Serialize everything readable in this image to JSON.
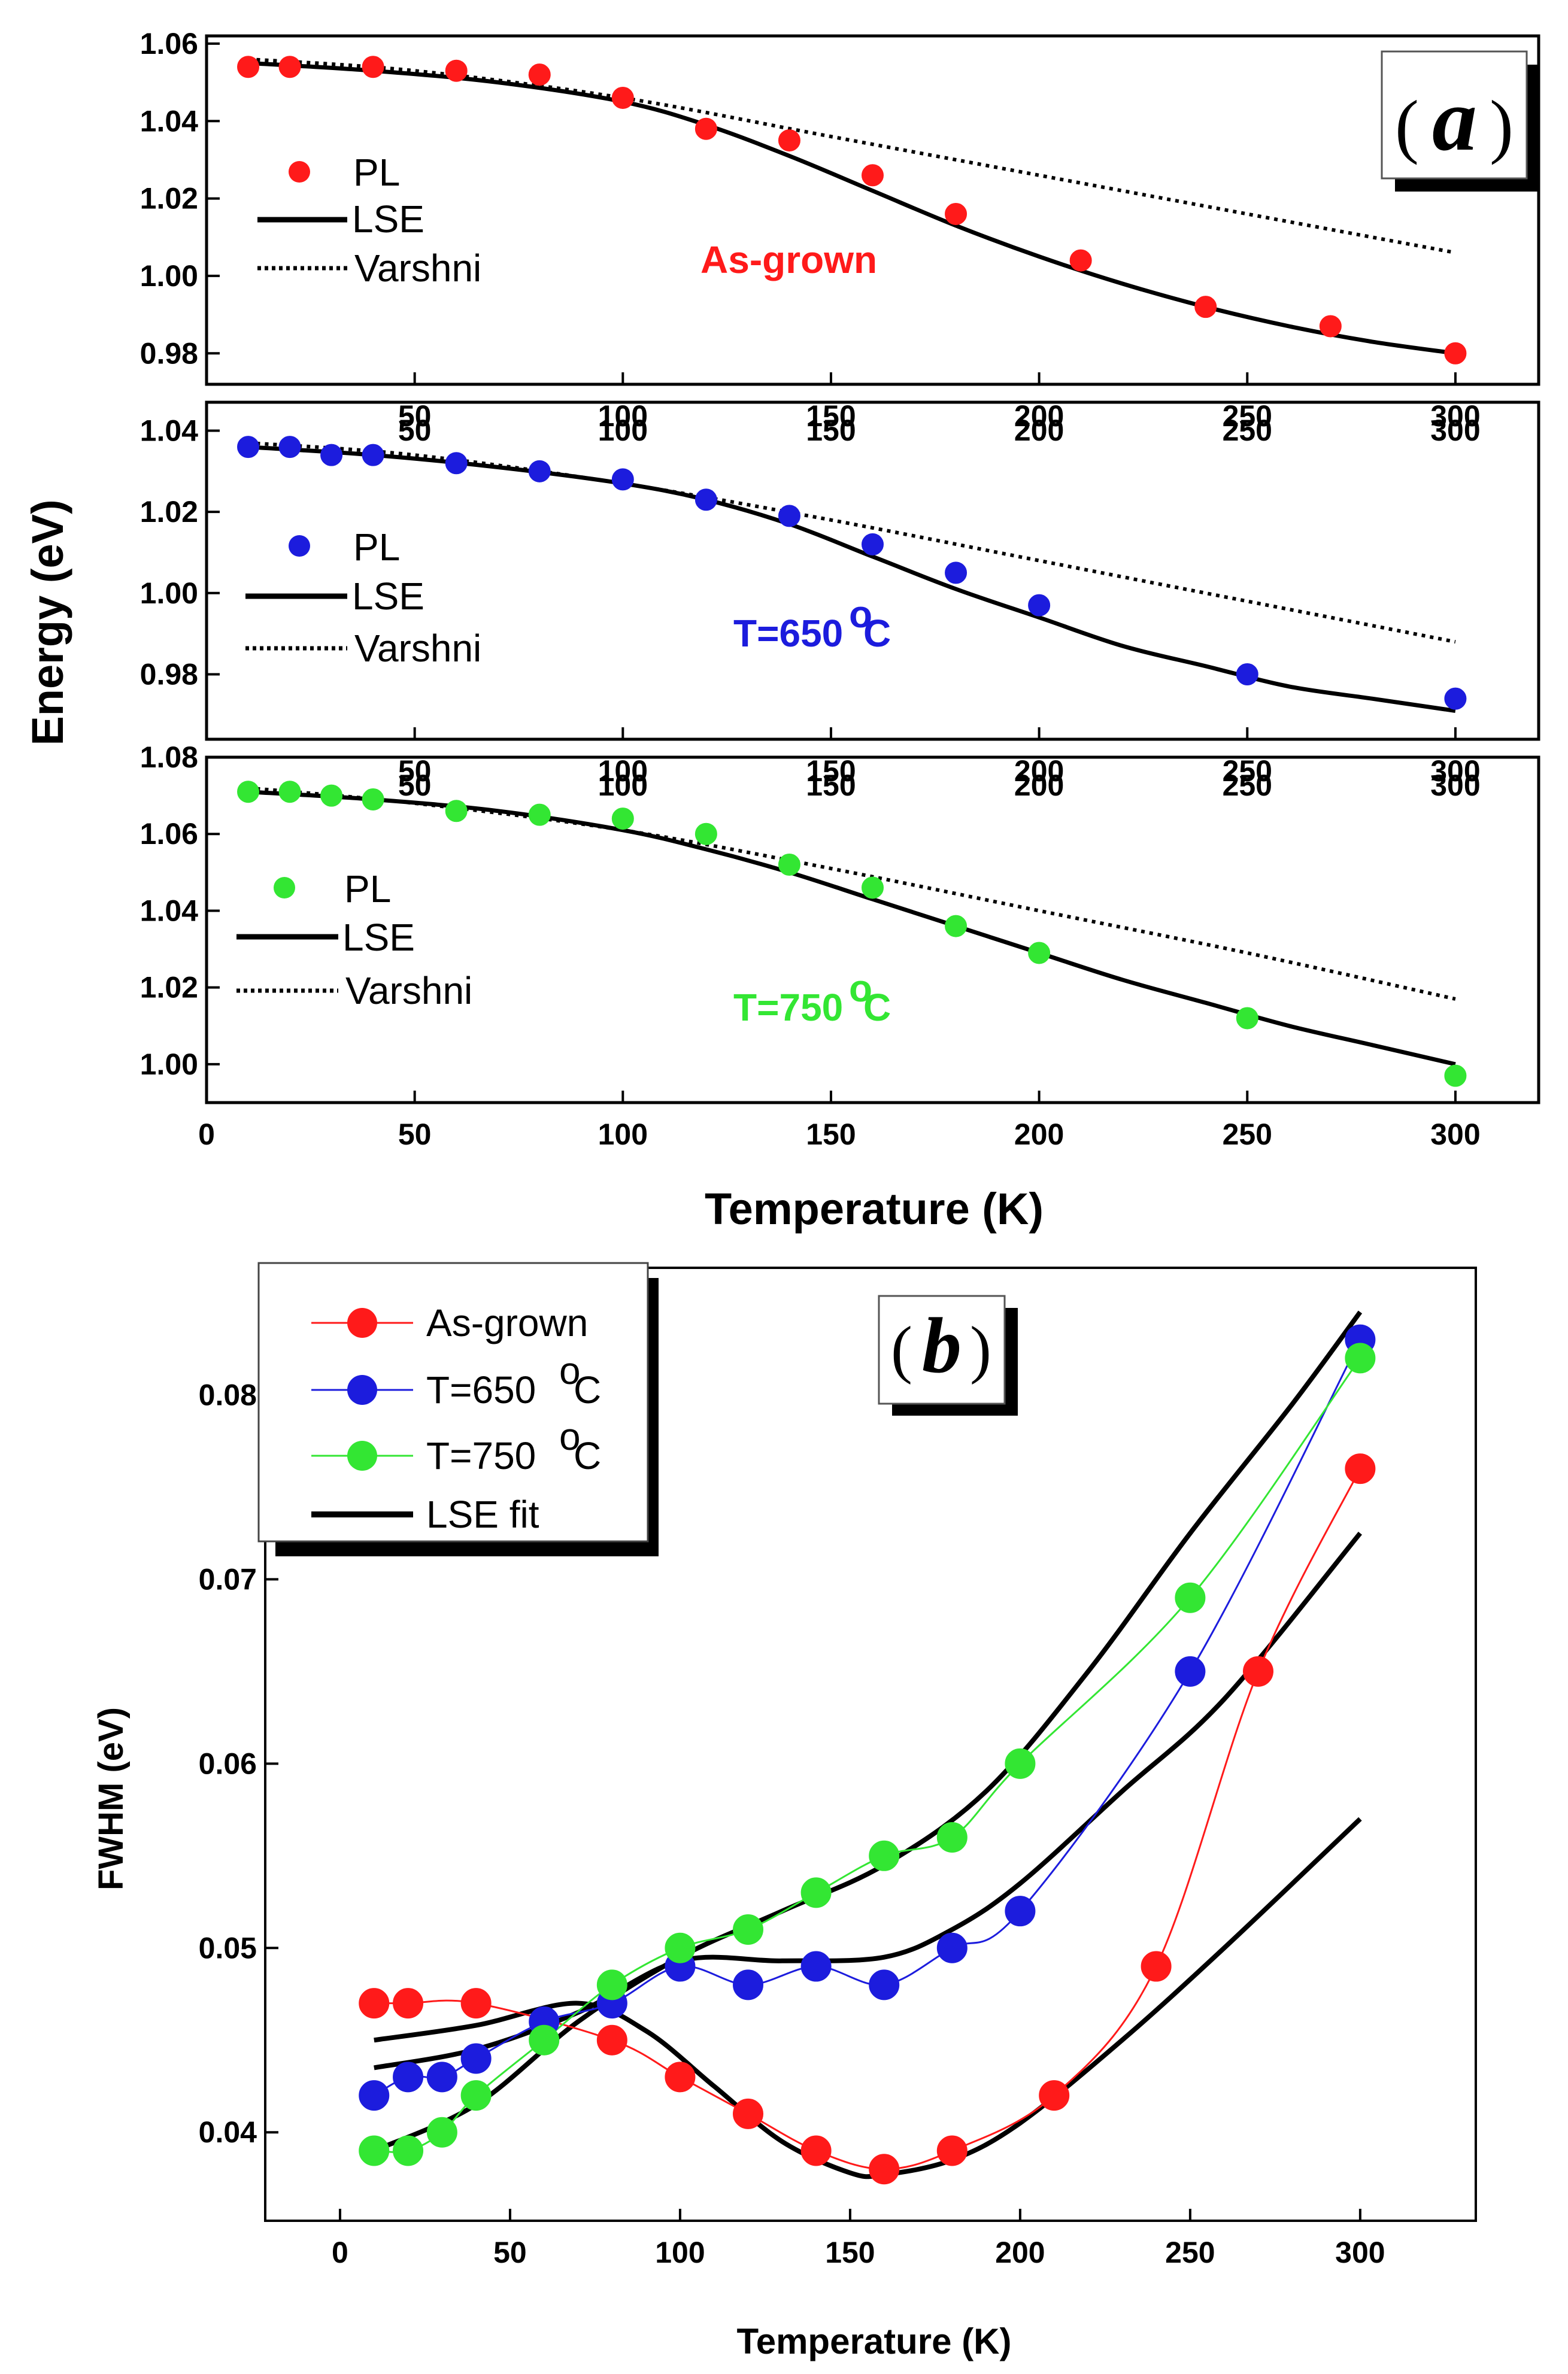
{
  "colors": {
    "red": "#ff1a1a",
    "blue": "#1c1cdd",
    "green": "#33e633",
    "black": "#000000"
  },
  "figure_a": {
    "tag_letter": "a",
    "y_axis_title": "Energy (eV)",
    "x_axis_title": "Temperature (K)"
  },
  "figure_b": {
    "tag_letter": "b"
  },
  "chart_data": [
    {
      "type": "scatter",
      "panel": "a-top",
      "annotation": "As-grown",
      "legend": [
        "PL",
        "LSE",
        "Varshni"
      ],
      "xlim": [
        0,
        320
      ],
      "ylim": [
        0.972,
        1.062
      ],
      "yticks": [
        1.06,
        1.04,
        1.02,
        1.0,
        0.98
      ],
      "ytick_labels": [
        "1.06",
        "1.04",
        "1.02",
        "1.00",
        "0.98"
      ],
      "xticks": [
        50,
        100,
        150,
        200,
        250,
        300
      ],
      "xtick_labels": [
        "50",
        "100",
        "150",
        "200",
        "250",
        "300"
      ],
      "series": [
        {
          "name": "PL",
          "color": "#ff1a1a",
          "x": [
            10,
            20,
            40,
            60,
            80,
            100,
            120,
            140,
            160,
            180,
            210,
            240,
            270,
            300
          ],
          "y": [
            1.054,
            1.054,
            1.054,
            1.053,
            1.052,
            1.046,
            1.038,
            1.035,
            1.026,
            1.016,
            1.004,
            0.992,
            0.987,
            0.98
          ]
        },
        {
          "name": "LSE",
          "style": "solid",
          "x": [
            10,
            40,
            70,
            100,
            120,
            140,
            160,
            180,
            200,
            220,
            240,
            260,
            280,
            300
          ],
          "y": [
            1.055,
            1.053,
            1.05,
            1.045,
            1.039,
            1.031,
            1.022,
            1.013,
            1.005,
            0.998,
            0.992,
            0.987,
            0.983,
            0.98
          ]
        },
        {
          "name": "Varshni",
          "style": "dotted",
          "x": [
            10,
            50,
            100,
            150,
            200,
            250,
            300
          ],
          "y": [
            1.056,
            1.053,
            1.046,
            1.036,
            1.026,
            1.016,
            1.006
          ]
        }
      ]
    },
    {
      "type": "scatter",
      "panel": "a-middle",
      "annotation": "T=650",
      "annotation_unit": "C",
      "annotation_degree": "o",
      "legend": [
        "PL",
        "LSE",
        "Varshni"
      ],
      "xlim": [
        0,
        320
      ],
      "ylim": [
        0.964,
        1.047
      ],
      "yticks": [
        1.04,
        1.02,
        1.0,
        0.98
      ],
      "ytick_labels": [
        "1.04",
        "1.02",
        "1.00",
        "0.98"
      ],
      "xticks": [
        50,
        100,
        150,
        200,
        250,
        300
      ],
      "xtick_labels": [
        "50",
        "100",
        "150",
        "200",
        "250",
        "300"
      ],
      "series": [
        {
          "name": "PL",
          "color": "#1c1cdd",
          "x": [
            10,
            20,
            30,
            40,
            60,
            80,
            100,
            120,
            140,
            160,
            180,
            200,
            250,
            300
          ],
          "y": [
            1.036,
            1.036,
            1.034,
            1.034,
            1.032,
            1.03,
            1.028,
            1.023,
            1.019,
            1.012,
            1.005,
            0.997,
            0.98,
            0.974
          ]
        },
        {
          "name": "LSE",
          "style": "solid",
          "x": [
            10,
            40,
            70,
            100,
            120,
            140,
            160,
            180,
            200,
            220,
            240,
            260,
            280,
            300
          ],
          "y": [
            1.036,
            1.034,
            1.031,
            1.027,
            1.023,
            1.017,
            1.009,
            1.001,
            0.994,
            0.987,
            0.982,
            0.977,
            0.974,
            0.971
          ]
        },
        {
          "name": "Varshni",
          "style": "dotted",
          "x": [
            10,
            50,
            100,
            150,
            200,
            250,
            300
          ],
          "y": [
            1.037,
            1.034,
            1.027,
            1.018,
            1.008,
            0.998,
            0.988
          ]
        }
      ]
    },
    {
      "type": "scatter",
      "panel": "a-bottom",
      "annotation": "T=750",
      "annotation_unit": "C",
      "annotation_degree": "o",
      "legend": [
        "PL",
        "LSE",
        "Varshni"
      ],
      "xlabel": "Temperature (K)",
      "xlim": [
        0,
        320
      ],
      "ylim": [
        0.99,
        1.08
      ],
      "yticks": [
        1.08,
        1.06,
        1.04,
        1.02,
        1.0
      ],
      "ytick_labels": [
        "1.08",
        "1.06",
        "1.04",
        "1.02",
        "1.00"
      ],
      "top_xticks": [
        50,
        100,
        150,
        200,
        250,
        300
      ],
      "top_xtick_labels": [
        "50",
        "100",
        "150",
        "200",
        "250",
        "300"
      ],
      "xticks": [
        0,
        50,
        100,
        150,
        200,
        250,
        300
      ],
      "xtick_labels": [
        "0",
        "50",
        "100",
        "150",
        "200",
        "250",
        "300"
      ],
      "series": [
        {
          "name": "PL",
          "color": "#33e633",
          "x": [
            10,
            20,
            30,
            40,
            60,
            80,
            100,
            120,
            140,
            160,
            180,
            200,
            250,
            300
          ],
          "y": [
            1.071,
            1.071,
            1.07,
            1.069,
            1.066,
            1.065,
            1.064,
            1.06,
            1.052,
            1.046,
            1.036,
            1.029,
            1.012,
            0.997
          ]
        },
        {
          "name": "LSE",
          "style": "solid",
          "x": [
            10,
            40,
            70,
            100,
            120,
            140,
            160,
            180,
            200,
            220,
            240,
            260,
            280,
            300
          ],
          "y": [
            1.071,
            1.069,
            1.066,
            1.061,
            1.056,
            1.05,
            1.043,
            1.036,
            1.029,
            1.022,
            1.016,
            1.01,
            1.005,
            1.0
          ]
        },
        {
          "name": "Varshni",
          "style": "dotted",
          "x": [
            10,
            50,
            100,
            150,
            200,
            250,
            300
          ],
          "y": [
            1.072,
            1.068,
            1.061,
            1.051,
            1.04,
            1.029,
            1.017
          ]
        }
      ]
    },
    {
      "type": "line",
      "panel": "b",
      "xlabel": "Temperature (K)",
      "ylabel": "FWHM (eV)",
      "xlim": [
        -22,
        334
      ],
      "ylim": [
        0.0352,
        0.0869
      ],
      "xticks": [
        0,
        50,
        100,
        150,
        200,
        250,
        300
      ],
      "xtick_labels": [
        "0",
        "50",
        "100",
        "150",
        "200",
        "250",
        "300"
      ],
      "yticks": [
        0.04,
        0.05,
        0.06,
        0.07,
        0.08
      ],
      "ytick_labels": [
        "0.04",
        "0.05",
        "0.06",
        "0.07",
        "0.08"
      ],
      "legend": [
        "As-grown",
        "T=650",
        "T=750",
        "LSE fit"
      ],
      "legend_unit": "C",
      "legend_degree": "o",
      "series": [
        {
          "name": "As-grown",
          "color": "#ff1a1a",
          "x": [
            10,
            20,
            40,
            80,
            100,
            120,
            140,
            160,
            180,
            210,
            240,
            270,
            300
          ],
          "y": [
            0.047,
            0.047,
            0.047,
            0.045,
            0.043,
            0.041,
            0.039,
            0.038,
            0.039,
            0.042,
            0.049,
            0.065,
            0.076
          ]
        },
        {
          "name": "T=650",
          "color": "#1c1cdd",
          "x": [
            10,
            20,
            30,
            40,
            60,
            80,
            100,
            120,
            140,
            160,
            180,
            200,
            250,
            300
          ],
          "y": [
            0.042,
            0.043,
            0.043,
            0.044,
            0.046,
            0.047,
            0.049,
            0.048,
            0.049,
            0.048,
            0.05,
            0.052,
            0.065,
            0.083
          ]
        },
        {
          "name": "T=750",
          "color": "#33e633",
          "x": [
            10,
            20,
            30,
            40,
            60,
            80,
            100,
            120,
            140,
            160,
            180,
            200,
            250,
            300
          ],
          "y": [
            0.039,
            0.039,
            0.04,
            0.042,
            0.045,
            0.048,
            0.05,
            0.051,
            0.053,
            0.055,
            0.056,
            0.06,
            0.069,
            0.082
          ]
        },
        {
          "name": "LSE fit (As-grown)",
          "style": "solid",
          "x": [
            10,
            40,
            70,
            90,
            110,
            130,
            150,
            160,
            180,
            200,
            230,
            260,
            300
          ],
          "y": [
            0.045,
            0.0458,
            0.047,
            0.0455,
            0.0425,
            0.0395,
            0.0378,
            0.0377,
            0.0385,
            0.0405,
            0.045,
            0.05,
            0.057
          ]
        },
        {
          "name": "LSE fit (T=650)",
          "style": "solid",
          "x": [
            10,
            40,
            70,
            100,
            130,
            160,
            180,
            200,
            230,
            260,
            300
          ],
          "y": [
            0.0435,
            0.0445,
            0.0465,
            0.0493,
            0.0493,
            0.0495,
            0.051,
            0.0535,
            0.0585,
            0.0635,
            0.0725
          ]
        },
        {
          "name": "LSE fit (T=750)",
          "style": "solid",
          "x": [
            10,
            40,
            70,
            100,
            130,
            160,
            190,
            220,
            250,
            280,
            300
          ],
          "y": [
            0.039,
            0.0415,
            0.046,
            0.0495,
            0.052,
            0.0545,
            0.0585,
            0.065,
            0.0725,
            0.0795,
            0.0845
          ]
        }
      ]
    }
  ]
}
